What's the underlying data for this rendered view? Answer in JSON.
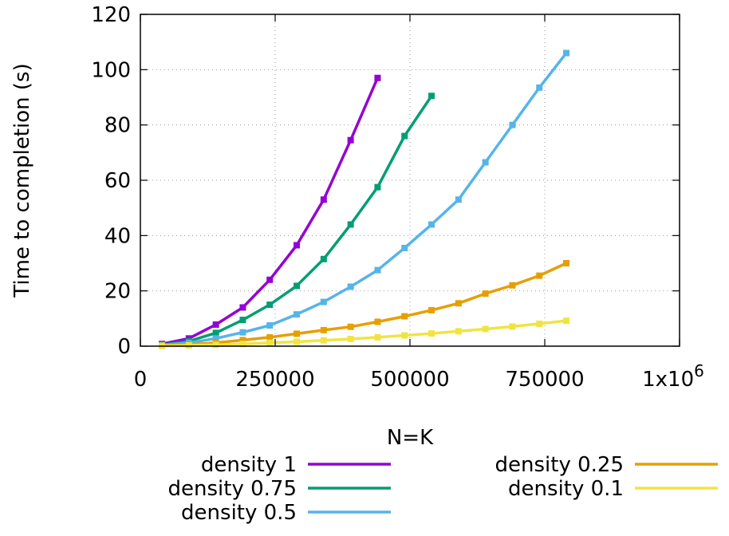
{
  "chart_data": {
    "type": "line",
    "title": "",
    "xlabel": "N=K",
    "ylabel": "Time to completion (s)",
    "xlim": [
      0,
      1000000
    ],
    "ylim": [
      0,
      120
    ],
    "xticks": [
      0,
      250000,
      500000,
      750000,
      1000000
    ],
    "xtick_labels": [
      "0",
      "250000",
      "500000",
      "750000",
      "1x10"
    ],
    "xtick_last_exponent": "6",
    "yticks": [
      0,
      20,
      40,
      60,
      80,
      100,
      120
    ],
    "ytick_labels": [
      "0",
      "20",
      "40",
      "60",
      "80",
      "100",
      "120"
    ],
    "grid": true,
    "legend_position": "below",
    "series": [
      {
        "name": "density 1",
        "color": "#9400d3",
        "x": [
          40000,
          90000,
          140000,
          190000,
          240000,
          290000,
          340000,
          390000,
          440000
        ],
        "y": [
          0.8,
          2.8,
          7.8,
          14,
          24,
          36.5,
          53,
          74.5,
          97
        ]
      },
      {
        "name": "density 0.75",
        "color": "#009e73",
        "x": [
          40000,
          90000,
          140000,
          190000,
          240000,
          290000,
          340000,
          390000,
          440000,
          490000,
          540000
        ],
        "y": [
          0.5,
          1.8,
          4.8,
          9.5,
          15,
          21.8,
          31.5,
          44,
          57.5,
          76,
          90.5
        ]
      },
      {
        "name": "density 0.5",
        "color": "#56b4e9",
        "x": [
          40000,
          90000,
          140000,
          190000,
          240000,
          290000,
          340000,
          390000,
          440000,
          490000,
          540000,
          590000,
          640000,
          690000,
          740000,
          790000
        ],
        "y": [
          0.4,
          1.2,
          2.8,
          5,
          7.5,
          11.5,
          16,
          21.5,
          27.5,
          35.5,
          44,
          53,
          66.5,
          80,
          93.5,
          106
        ]
      },
      {
        "name": "density 0.25",
        "color": "#e69f00",
        "x": [
          40000,
          90000,
          140000,
          190000,
          240000,
          290000,
          340000,
          390000,
          440000,
          490000,
          540000,
          590000,
          640000,
          690000,
          740000,
          790000
        ],
        "y": [
          0.2,
          0.6,
          1.2,
          2.2,
          3.2,
          4.5,
          5.8,
          7,
          8.8,
          10.8,
          13,
          15.5,
          19,
          22,
          25.5,
          30
        ]
      },
      {
        "name": "density 0.1",
        "color": "#f0e442",
        "x": [
          40000,
          90000,
          140000,
          190000,
          240000,
          290000,
          340000,
          390000,
          440000,
          490000,
          540000,
          590000,
          640000,
          690000,
          740000,
          790000
        ],
        "y": [
          0.1,
          0.3,
          0.5,
          0.8,
          1.2,
          1.6,
          2.1,
          2.6,
          3.2,
          3.9,
          4.6,
          5.4,
          6.2,
          7.1,
          8.1,
          9.2
        ]
      }
    ]
  }
}
